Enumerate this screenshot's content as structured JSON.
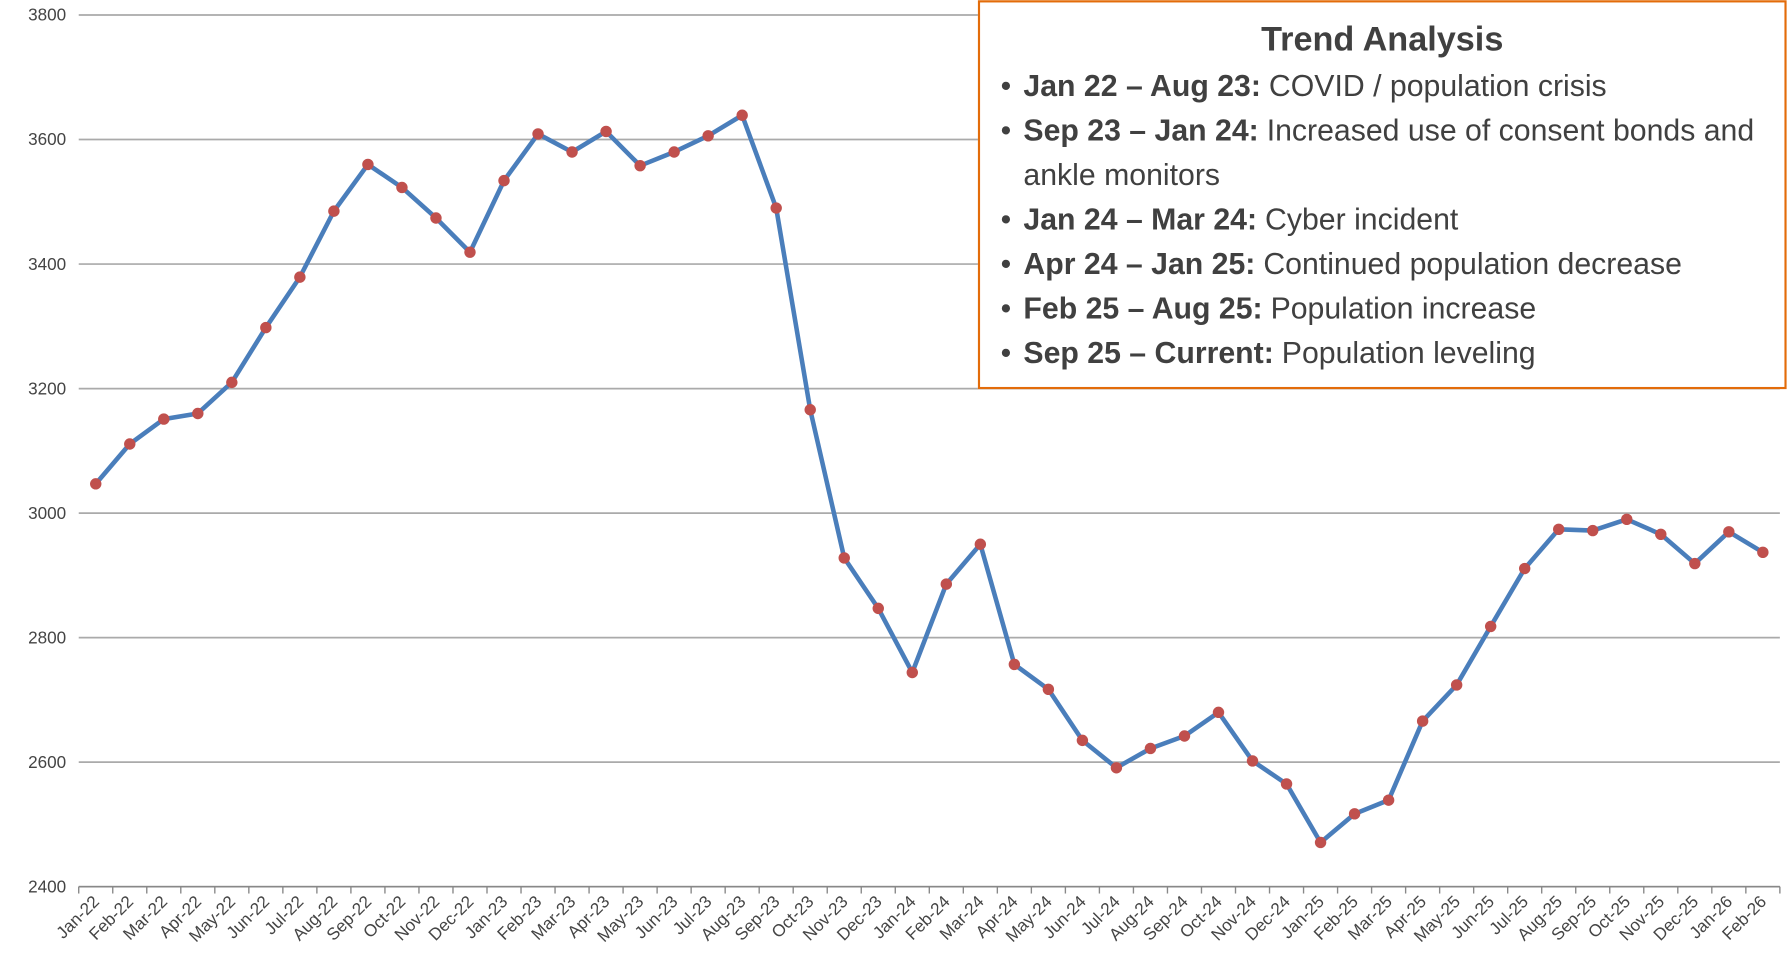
{
  "chart_data": {
    "type": "line",
    "categories": [
      "Jan-22",
      "Feb-22",
      "Mar-22",
      "Apr-22",
      "May-22",
      "Jun-22",
      "Jul-22",
      "Aug-22",
      "Sep-22",
      "Oct-22",
      "Nov-22",
      "Dec-22",
      "Jan-23",
      "Feb-23",
      "Mar-23",
      "Apr-23",
      "May-23",
      "Jun-23",
      "Jul-23",
      "Aug-23",
      "Sep-23",
      "Oct-23",
      "Nov-23",
      "Dec-23",
      "Jan-24",
      "Feb-24",
      "Mar-24",
      "Apr-24",
      "May-24",
      "Jun-24",
      "Jul-24",
      "Aug-24",
      "Sep-24",
      "Oct-24",
      "Nov-24",
      "Dec-24",
      "Jan-25",
      "Feb-25",
      "Mar-25",
      "Apr-25",
      "May-25",
      "Jun-25",
      "Jul-25",
      "Aug-25",
      "Sep-25",
      "Oct-25",
      "Nov-25",
      "Dec-25",
      "Jan-26",
      "Feb-26"
    ],
    "values": [
      3047,
      3111,
      3151,
      3160,
      3210,
      3298,
      3379,
      3485,
      3560,
      3523,
      3474,
      3419,
      3534,
      3609,
      3580,
      3613,
      3558,
      3580,
      3606,
      3639,
      3490,
      3166,
      2928,
      2847,
      2744,
      2886,
      2950,
      2757,
      2717,
      2635,
      2591,
      2622,
      2642,
      2680,
      2602,
      2565,
      2471,
      2517,
      2539,
      2666,
      2724,
      2818,
      2911,
      2974,
      2972,
      2990,
      2966,
      2919,
      2970,
      2937
    ],
    "color": "#4a7ebb",
    "marker_color": "#c0504d",
    "ylim": [
      2400,
      3800
    ],
    "yticks": [
      2400,
      2600,
      2800,
      3000,
      3200,
      3400,
      3600,
      3800
    ],
    "grid": true,
    "annotation": {
      "title": "Trend Analysis",
      "items": [
        {
          "label": "Jan 22 – Aug 23:",
          "text": "COVID / population crisis"
        },
        {
          "label": "Sep 23 – Jan 24:",
          "text": "Increased use of consent bonds and ankle monitors"
        },
        {
          "label": "Jan 24 – Mar 24:",
          "text": "Cyber incident"
        },
        {
          "label": "Apr 24 – Jan 25:",
          "text": "Continued population decrease"
        },
        {
          "label": "Feb 25 – Aug 25:",
          "text": "Population increase"
        },
        {
          "label": "Sep 25 – Current:",
          "text": "Population leveling"
        }
      ]
    }
  }
}
